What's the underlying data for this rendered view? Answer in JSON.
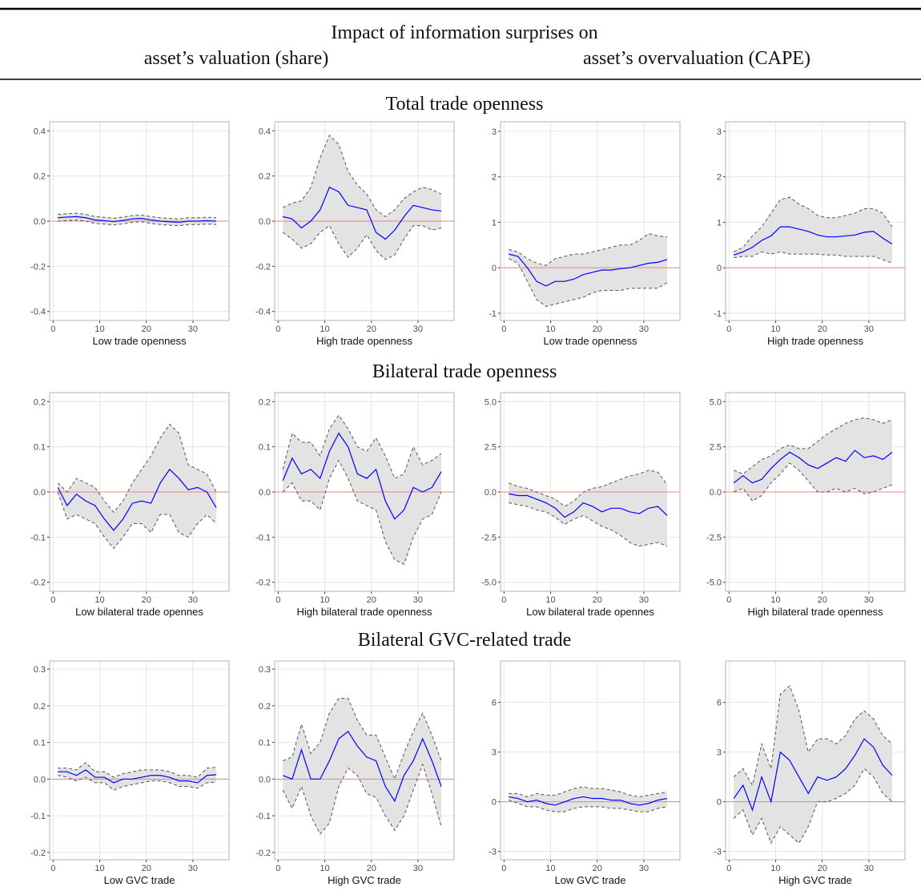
{
  "header": {
    "title": "Impact of information surprises on",
    "left": "asset’s valuation (share)",
    "right": "asset’s overvaluation (CAPE)"
  },
  "sections": [
    "Total trade openness",
    "Bilateral trade openness",
    "Bilateral GVC-related trade"
  ],
  "chart_data": [
    {
      "type": "line",
      "xlabel": "Low trade openness",
      "x": [
        1,
        3,
        5,
        7,
        9,
        11,
        13,
        15,
        17,
        19,
        21,
        23,
        25,
        27,
        29,
        31,
        33,
        35
      ],
      "xlim": [
        -0.75,
        37.75
      ],
      "xticks": [
        0,
        10,
        20,
        30
      ],
      "ylim": [
        -0.44,
        0.44
      ],
      "yticks": [
        -0.4,
        -0.2,
        {
          "value": 0,
          "label": "0.0"
        },
        0.2,
        0.4
      ],
      "grid": true,
      "color": "#0000ff",
      "band_color": "#e3e3e3",
      "band_edge_color": "#555555",
      "ref_line": 0,
      "ref_color": "#f08080",
      "values": [
        0.015,
        0.018,
        0.02,
        0.015,
        0.005,
        0.002,
        -0.002,
        0.003,
        0.01,
        0.012,
        0.005,
        0.0,
        -0.003,
        -0.005,
        0.0,
        0.0,
        0.002,
        0.0
      ],
      "upper": [
        0.03,
        0.033,
        0.035,
        0.03,
        0.02,
        0.017,
        0.013,
        0.018,
        0.025,
        0.027,
        0.02,
        0.015,
        0.012,
        0.01,
        0.015,
        0.015,
        0.017,
        0.015
      ],
      "lower": [
        0.0,
        0.003,
        0.005,
        0.0,
        -0.01,
        -0.013,
        -0.017,
        -0.012,
        -0.005,
        -0.003,
        -0.01,
        -0.015,
        -0.018,
        -0.02,
        -0.015,
        -0.015,
        -0.013,
        -0.015
      ]
    },
    {
      "type": "line",
      "xlabel": "High trade openness",
      "x": [
        1,
        3,
        5,
        7,
        9,
        11,
        13,
        15,
        17,
        19,
        21,
        23,
        25,
        27,
        29,
        31,
        33,
        35
      ],
      "xlim": [
        -0.75,
        37.75
      ],
      "xticks": [
        0,
        10,
        20,
        30
      ],
      "ylim": [
        -0.44,
        0.44
      ],
      "yticks": [
        -0.4,
        -0.2,
        {
          "value": 0,
          "label": "0.0"
        },
        0.2,
        0.4
      ],
      "grid": true,
      "color": "#0000ff",
      "band_color": "#e3e3e3",
      "band_edge_color": "#555555",
      "ref_line": 0,
      "ref_color": "#f08080",
      "values": [
        0.02,
        0.01,
        -0.03,
        0.0,
        0.05,
        0.15,
        0.13,
        0.07,
        0.06,
        0.05,
        -0.05,
        -0.08,
        -0.04,
        0.02,
        0.07,
        0.06,
        0.05,
        0.045
      ],
      "upper": [
        0.06,
        0.08,
        0.09,
        0.15,
        0.28,
        0.38,
        0.34,
        0.22,
        0.16,
        0.12,
        0.05,
        0.02,
        0.05,
        0.1,
        0.13,
        0.15,
        0.14,
        0.12
      ],
      "lower": [
        -0.05,
        -0.08,
        -0.12,
        -0.1,
        -0.05,
        -0.02,
        -0.1,
        -0.16,
        -0.12,
        -0.06,
        -0.13,
        -0.17,
        -0.15,
        -0.08,
        -0.02,
        -0.02,
        -0.04,
        -0.03
      ]
    },
    {
      "type": "line",
      "xlabel": "Low trade openness",
      "x": [
        1,
        3,
        5,
        7,
        9,
        11,
        13,
        15,
        17,
        19,
        21,
        23,
        25,
        27,
        29,
        31,
        33,
        35
      ],
      "xlim": [
        -0.75,
        37.75
      ],
      "xticks": [
        0,
        10,
        20,
        30
      ],
      "ylim": [
        -1.16,
        3.21
      ],
      "yticks": [
        -1,
        0,
        1,
        2,
        3
      ],
      "grid": true,
      "color": "#0000ff",
      "band_color": "#e3e3e3",
      "band_edge_color": "#555555",
      "ref_line": 0,
      "ref_color": "#f08080",
      "values": [
        0.3,
        0.25,
        0.0,
        -0.3,
        -0.4,
        -0.3,
        -0.3,
        -0.25,
        -0.15,
        -0.1,
        -0.05,
        -0.05,
        -0.02,
        0.0,
        0.05,
        0.1,
        0.12,
        0.18
      ],
      "upper": [
        0.4,
        0.35,
        0.2,
        0.1,
        0.05,
        0.2,
        0.25,
        0.3,
        0.3,
        0.35,
        0.4,
        0.45,
        0.5,
        0.5,
        0.6,
        0.75,
        0.7,
        0.68
      ],
      "lower": [
        0.2,
        0.1,
        -0.3,
        -0.7,
        -0.85,
        -0.8,
        -0.75,
        -0.7,
        -0.65,
        -0.55,
        -0.5,
        -0.5,
        -0.5,
        -0.45,
        -0.45,
        -0.45,
        -0.45,
        -0.33
      ]
    },
    {
      "type": "line",
      "xlabel": "High trade openness",
      "x": [
        1,
        3,
        5,
        7,
        9,
        11,
        13,
        15,
        17,
        19,
        21,
        23,
        25,
        27,
        29,
        31,
        33,
        35
      ],
      "xlim": [
        -0.75,
        37.75
      ],
      "xticks": [
        0,
        10,
        20,
        30
      ],
      "ylim": [
        -1.16,
        3.21
      ],
      "yticks": [
        -1,
        0,
        1,
        2,
        3
      ],
      "grid": true,
      "color": "#0000ff",
      "band_color": "#e3e3e3",
      "band_edge_color": "#555555",
      "ref_line": 0,
      "ref_color": "#f08080",
      "values": [
        0.28,
        0.35,
        0.45,
        0.6,
        0.7,
        0.9,
        0.9,
        0.85,
        0.8,
        0.72,
        0.68,
        0.68,
        0.7,
        0.72,
        0.78,
        0.8,
        0.65,
        0.52
      ],
      "upper": [
        0.35,
        0.45,
        0.7,
        0.9,
        1.2,
        1.5,
        1.55,
        1.4,
        1.3,
        1.15,
        1.1,
        1.1,
        1.15,
        1.2,
        1.3,
        1.3,
        1.2,
        0.9
      ],
      "lower": [
        0.22,
        0.25,
        0.25,
        0.35,
        0.3,
        0.35,
        0.3,
        0.3,
        0.3,
        0.3,
        0.28,
        0.28,
        0.25,
        0.25,
        0.25,
        0.25,
        0.18,
        0.1
      ]
    },
    {
      "type": "line",
      "xlabel": "Low bilateral trade opennes",
      "x": [
        1,
        3,
        5,
        7,
        9,
        11,
        13,
        15,
        17,
        19,
        21,
        23,
        25,
        27,
        29,
        31,
        33,
        35
      ],
      "xlim": [
        -0.75,
        37.75
      ],
      "xticks": [
        0,
        10,
        20,
        30
      ],
      "ylim": [
        -0.22,
        0.22
      ],
      "yticks": [
        -0.2,
        -0.1,
        {
          "value": 0,
          "label": "0.0"
        },
        0.1,
        0.2
      ],
      "grid": true,
      "color": "#0000ff",
      "band_color": "#e3e3e3",
      "band_edge_color": "#555555",
      "ref_line": 0,
      "ref_color": "#f08080",
      "values": [
        0.01,
        -0.03,
        -0.005,
        -0.02,
        -0.03,
        -0.06,
        -0.085,
        -0.06,
        -0.025,
        -0.02,
        -0.025,
        0.02,
        0.05,
        0.03,
        0.005,
        0.01,
        0.0,
        -0.035
      ],
      "upper": [
        0.02,
        0.0,
        0.03,
        0.02,
        0.01,
        -0.02,
        -0.045,
        -0.02,
        0.02,
        0.05,
        0.08,
        0.12,
        0.15,
        0.13,
        0.06,
        0.05,
        0.04,
        0.0
      ],
      "lower": [
        0.0,
        -0.06,
        -0.05,
        -0.06,
        -0.07,
        -0.1,
        -0.125,
        -0.1,
        -0.07,
        -0.07,
        -0.09,
        -0.05,
        -0.05,
        -0.09,
        -0.1,
        -0.07,
        -0.05,
        -0.07
      ]
    },
    {
      "type": "line",
      "xlabel": "High bilateral trade openness",
      "x": [
        1,
        3,
        5,
        7,
        9,
        11,
        13,
        15,
        17,
        19,
        21,
        23,
        25,
        27,
        29,
        31,
        33,
        35
      ],
      "xlim": [
        -0.75,
        37.75
      ],
      "xticks": [
        0,
        10,
        20,
        30
      ],
      "ylim": [
        -0.22,
        0.22
      ],
      "yticks": [
        -0.2,
        -0.1,
        {
          "value": 0,
          "label": "0.0"
        },
        0.1,
        0.2
      ],
      "grid": true,
      "color": "#0000ff",
      "band_color": "#e3e3e3",
      "band_edge_color": "#555555",
      "ref_line": 0,
      "ref_color": "#f08080",
      "values": [
        0.025,
        0.075,
        0.04,
        0.05,
        0.03,
        0.09,
        0.13,
        0.1,
        0.04,
        0.03,
        0.05,
        -0.02,
        -0.06,
        -0.04,
        0.01,
        0.0,
        0.01,
        0.045
      ],
      "upper": [
        0.05,
        0.13,
        0.11,
        0.11,
        0.08,
        0.14,
        0.17,
        0.14,
        0.1,
        0.09,
        0.12,
        0.08,
        0.03,
        0.04,
        0.1,
        0.06,
        0.07,
        0.085
      ],
      "lower": [
        0.0,
        0.02,
        -0.02,
        -0.02,
        -0.04,
        0.03,
        0.07,
        0.03,
        -0.02,
        -0.03,
        -0.04,
        -0.11,
        -0.15,
        -0.16,
        -0.1,
        -0.06,
        -0.05,
        0.0
      ]
    },
    {
      "type": "line",
      "xlabel": "Low bilateral trade opennes",
      "x": [
        1,
        3,
        5,
        7,
        9,
        11,
        13,
        15,
        17,
        19,
        21,
        23,
        25,
        27,
        29,
        31,
        33,
        35
      ],
      "xlim": [
        -0.75,
        37.75
      ],
      "xticks": [
        0,
        10,
        20,
        30
      ],
      "ylim": [
        -5.5,
        5.5
      ],
      "yticks": [
        {
          "value": -5,
          "label": "-5.0"
        },
        -2.5,
        {
          "value": 0,
          "label": "0.0"
        },
        2.5,
        {
          "value": 5,
          "label": "5.0"
        }
      ],
      "grid": true,
      "color": "#0000ff",
      "band_color": "#e3e3e3",
      "band_edge_color": "#555555",
      "ref_line": 0,
      "ref_color": "#f08080",
      "values": [
        -0.1,
        -0.2,
        -0.2,
        -0.4,
        -0.6,
        -0.9,
        -1.4,
        -1.1,
        -0.6,
        -0.8,
        -1.1,
        -0.9,
        -0.9,
        -1.1,
        -1.2,
        -0.9,
        -0.8,
        -1.3
      ],
      "upper": [
        0.5,
        0.3,
        0.2,
        0.0,
        -0.2,
        -0.4,
        -0.8,
        -0.5,
        0.0,
        0.2,
        0.3,
        0.5,
        0.7,
        0.9,
        1.0,
        1.2,
        1.1,
        0.4
      ],
      "lower": [
        -0.6,
        -0.7,
        -0.8,
        -1.0,
        -1.1,
        -1.4,
        -1.8,
        -1.5,
        -1.3,
        -1.6,
        -1.9,
        -2.1,
        -2.4,
        -2.8,
        -3.0,
        -2.9,
        -2.8,
        -3.0
      ]
    },
    {
      "type": "line",
      "xlabel": "High bilateral trade openness",
      "x": [
        1,
        3,
        5,
        7,
        9,
        11,
        13,
        15,
        17,
        19,
        21,
        23,
        25,
        27,
        29,
        31,
        33,
        35
      ],
      "xlim": [
        -0.75,
        37.75
      ],
      "xticks": [
        0,
        10,
        20,
        30
      ],
      "ylim": [
        -5.5,
        5.5
      ],
      "yticks": [
        {
          "value": -5,
          "label": "-5.0"
        },
        -2.5,
        {
          "value": 0,
          "label": "0.0"
        },
        2.5,
        {
          "value": 5,
          "label": "5.0"
        }
      ],
      "grid": true,
      "color": "#0000ff",
      "band_color": "#e3e3e3",
      "band_edge_color": "#555555",
      "ref_line": 0,
      "ref_color": "#f08080",
      "values": [
        0.5,
        0.9,
        0.5,
        0.7,
        1.3,
        1.8,
        2.2,
        1.9,
        1.5,
        1.3,
        1.6,
        1.9,
        1.7,
        2.3,
        1.9,
        2.0,
        1.8,
        2.2
      ],
      "upper": [
        1.2,
        1.0,
        1.4,
        1.8,
        2.0,
        2.4,
        2.6,
        2.4,
        2.4,
        2.8,
        3.2,
        3.5,
        3.8,
        4.0,
        4.1,
        4.0,
        3.8,
        4.0
      ],
      "lower": [
        0.0,
        0.2,
        -0.5,
        -0.2,
        0.5,
        1.0,
        1.6,
        1.2,
        0.6,
        0.0,
        0.0,
        0.2,
        0.0,
        0.2,
        -0.1,
        0.0,
        0.2,
        0.4
      ]
    },
    {
      "type": "line",
      "xlabel": "Low GVC trade",
      "x": [
        1,
        3,
        5,
        7,
        9,
        11,
        13,
        15,
        17,
        19,
        21,
        23,
        25,
        27,
        29,
        31,
        33,
        35
      ],
      "xlim": [
        -0.75,
        37.75
      ],
      "xticks": [
        0,
        10,
        20,
        30
      ],
      "ylim": [
        -0.22,
        0.322
      ],
      "yticks": [
        -0.2,
        -0.1,
        {
          "value": 0,
          "label": "0.0"
        },
        0.1,
        0.2,
        0.3
      ],
      "grid": true,
      "color": "#0000ff",
      "band_color": "#e3e3e3",
      "band_edge_color": "#555555",
      "ref_line": 0,
      "ref_color": "#f08080",
      "values": [
        0.02,
        0.02,
        0.01,
        0.025,
        0.005,
        0.005,
        -0.01,
        0.0,
        0.0,
        0.005,
        0.01,
        0.01,
        0.005,
        -0.005,
        -0.005,
        -0.01,
        0.01,
        0.012
      ],
      "upper": [
        0.03,
        0.03,
        0.025,
        0.045,
        0.02,
        0.02,
        0.005,
        0.015,
        0.02,
        0.025,
        0.025,
        0.025,
        0.02,
        0.01,
        0.01,
        0.005,
        0.03,
        0.032
      ],
      "lower": [
        0.01,
        0.005,
        -0.005,
        0.005,
        -0.01,
        -0.01,
        -0.03,
        -0.02,
        -0.015,
        -0.01,
        -0.005,
        -0.005,
        -0.01,
        -0.02,
        -0.02,
        -0.025,
        -0.01,
        -0.008
      ]
    },
    {
      "type": "line",
      "xlabel": "High GVC trade",
      "x": [
        1,
        3,
        5,
        7,
        9,
        11,
        13,
        15,
        17,
        19,
        21,
        23,
        25,
        27,
        29,
        31,
        33,
        35
      ],
      "xlim": [
        -0.75,
        37.75
      ],
      "xticks": [
        0,
        10,
        20,
        30
      ],
      "ylim": [
        -0.22,
        0.322
      ],
      "yticks": [
        -0.2,
        -0.1,
        {
          "value": 0,
          "label": "0.0"
        },
        0.1,
        0.2,
        0.3
      ],
      "grid": true,
      "color": "#0000ff",
      "band_color": "#e3e3e3",
      "band_edge_color": "#555555",
      "ref_line": 0,
      "ref_color": "#f08080",
      "values": [
        0.01,
        0.0,
        0.08,
        0.0,
        0.0,
        0.05,
        0.11,
        0.13,
        0.09,
        0.06,
        0.05,
        -0.02,
        -0.06,
        0.01,
        0.05,
        0.11,
        0.05,
        -0.02
      ],
      "upper": [
        0.05,
        0.06,
        0.15,
        0.07,
        0.1,
        0.18,
        0.22,
        0.22,
        0.16,
        0.12,
        0.12,
        0.06,
        0.0,
        0.07,
        0.13,
        0.18,
        0.12,
        0.05
      ],
      "lower": [
        -0.03,
        -0.08,
        -0.02,
        -0.1,
        -0.15,
        -0.12,
        -0.02,
        0.03,
        0.01,
        -0.04,
        -0.05,
        -0.1,
        -0.14,
        -0.1,
        -0.03,
        0.04,
        -0.04,
        -0.13
      ]
    },
    {
      "type": "line",
      "xlabel": "Low GVC trade",
      "x": [
        1,
        3,
        5,
        7,
        9,
        11,
        13,
        15,
        17,
        19,
        21,
        23,
        25,
        27,
        29,
        31,
        33,
        35
      ],
      "xlim": [
        -0.75,
        37.75
      ],
      "xticks": [
        0,
        10,
        20,
        30
      ],
      "ylim": [
        -3.5,
        8.5
      ],
      "yticks": [
        -3,
        0,
        3,
        6
      ],
      "grid": true,
      "color": "#0000ff",
      "band_color": "#e3e3e3",
      "band_edge_color": "#555555",
      "ref_line": 0,
      "ref_color": "#f08080",
      "values": [
        0.3,
        0.2,
        0.0,
        0.1,
        -0.1,
        -0.2,
        0.0,
        0.2,
        0.3,
        0.2,
        0.2,
        0.1,
        0.1,
        -0.1,
        -0.2,
        -0.1,
        0.1,
        0.2
      ],
      "upper": [
        0.5,
        0.5,
        0.3,
        0.5,
        0.4,
        0.4,
        0.6,
        0.8,
        0.9,
        0.8,
        0.8,
        0.7,
        0.6,
        0.4,
        0.3,
        0.4,
        0.5,
        0.6
      ],
      "lower": [
        0.1,
        -0.1,
        -0.3,
        -0.3,
        -0.5,
        -0.6,
        -0.6,
        -0.4,
        -0.3,
        -0.3,
        -0.3,
        -0.4,
        -0.4,
        -0.5,
        -0.6,
        -0.6,
        -0.4,
        -0.3
      ]
    },
    {
      "type": "line",
      "xlabel": "High GVC trade",
      "x": [
        1,
        3,
        5,
        7,
        9,
        11,
        13,
        15,
        17,
        19,
        21,
        23,
        25,
        27,
        29,
        31,
        33,
        35
      ],
      "xlim": [
        -0.75,
        37.75
      ],
      "xticks": [
        0,
        10,
        20,
        30
      ],
      "ylim": [
        -3.5,
        8.5
      ],
      "yticks": [
        -3,
        0,
        3,
        6
      ],
      "grid": true,
      "color": "#0000ff",
      "band_color": "#e3e3e3",
      "band_edge_color": "#555555",
      "ref_line": 0,
      "ref_color": "#f08080",
      "values": [
        0.2,
        1.0,
        -0.5,
        1.5,
        0.0,
        3.0,
        2.5,
        1.5,
        0.5,
        1.5,
        1.3,
        1.5,
        2.0,
        2.8,
        3.8,
        3.3,
        2.2,
        1.6
      ],
      "upper": [
        1.5,
        2.0,
        1.0,
        3.5,
        2.0,
        6.5,
        7.0,
        5.5,
        3.0,
        3.8,
        3.8,
        3.5,
        4.0,
        5.0,
        5.5,
        5.0,
        4.0,
        3.5
      ],
      "lower": [
        -1.0,
        -0.5,
        -2.0,
        -1.0,
        -2.5,
        -1.5,
        -2.0,
        -2.5,
        -1.5,
        0.0,
        0.0,
        0.2,
        0.5,
        1.0,
        2.0,
        1.5,
        0.5,
        0.0
      ]
    }
  ]
}
